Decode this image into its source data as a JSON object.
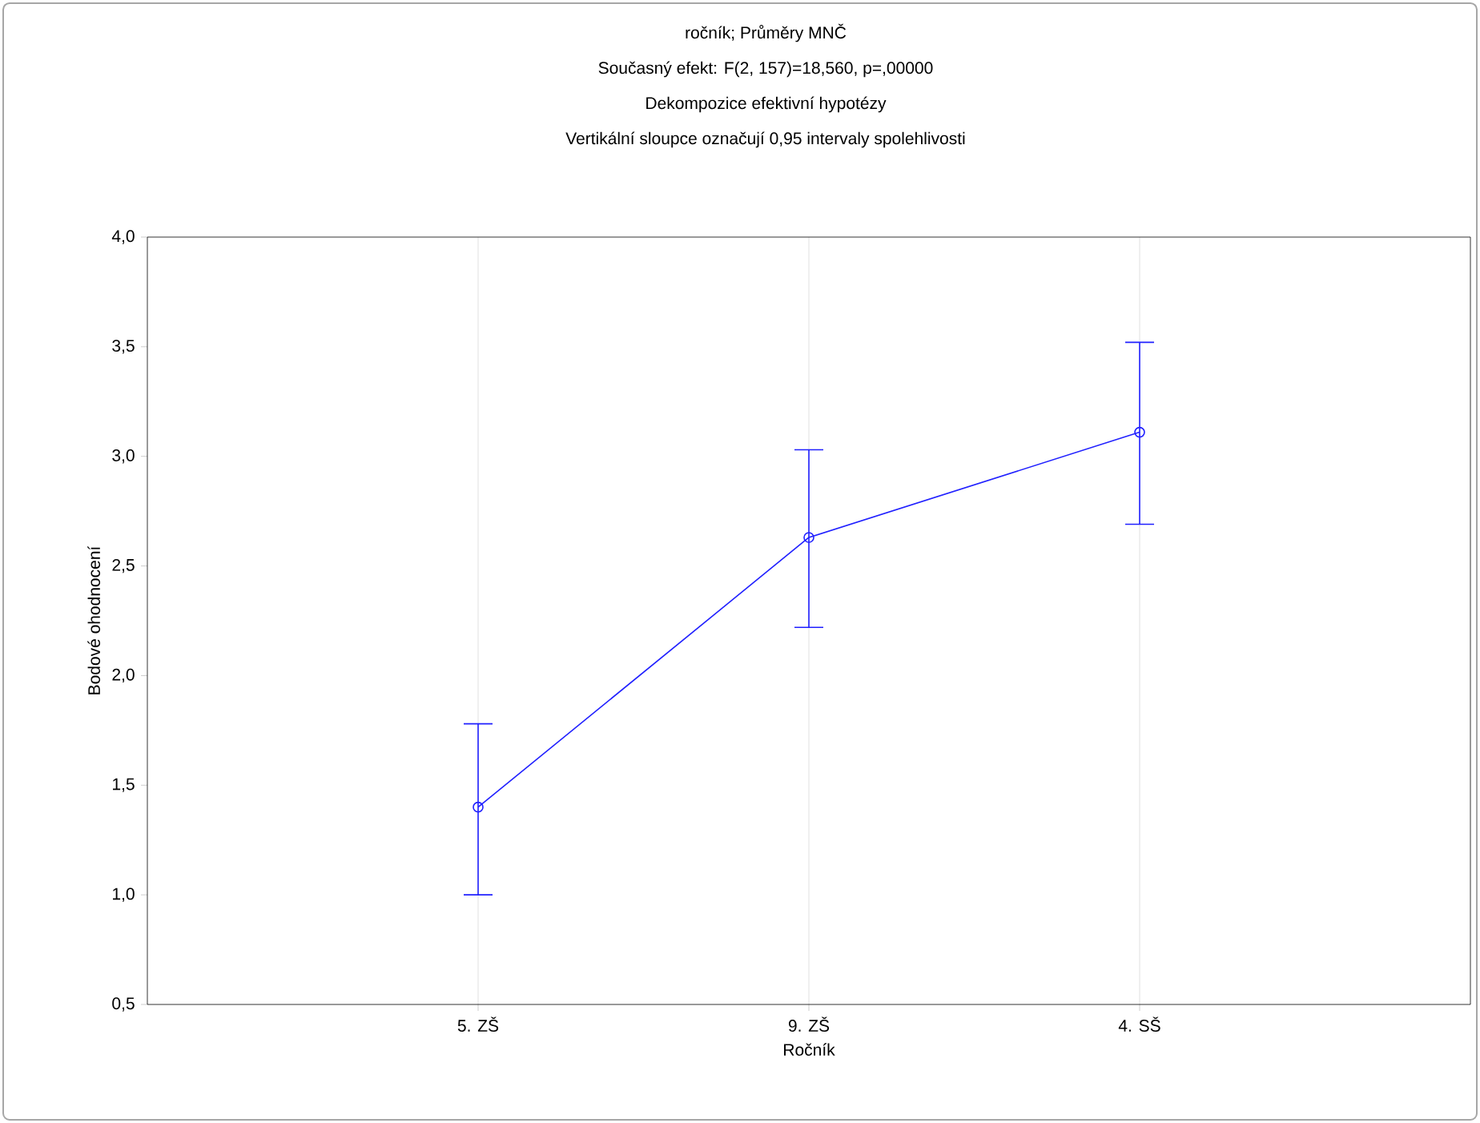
{
  "chart_data": {
    "type": "line",
    "title": "ročník; Průměry MNČ",
    "subtitle": "Současný efekt: F(2, 157)=18,560, p=,00000",
    "annotations": [
      "Dekompozice efektivní hypotézy",
      "Vertikální sloupce označují 0,95 intervaly spolehlivosti"
    ],
    "xlabel": "Ročník",
    "ylabel": "Bodové ohodnocení",
    "categories": [
      "5. ZŠ",
      "9. ZŠ",
      "4. SŠ"
    ],
    "values": [
      1.4,
      2.63,
      3.11
    ],
    "errors": [
      [
        1.0,
        1.78
      ],
      [
        2.22,
        3.03
      ],
      [
        2.69,
        3.52
      ]
    ],
    "color": "#2020ff",
    "marker": "circle",
    "grid": "x",
    "ylim": [
      0.5,
      4.0
    ],
    "yticks": [
      {
        "value": 0.5,
        "label": "0,5"
      },
      {
        "value": 1.0,
        "label": "1,0"
      },
      {
        "value": 1.5,
        "label": "1,5"
      },
      {
        "value": 2.0,
        "label": "2,0"
      },
      {
        "value": 2.5,
        "label": "2,5"
      },
      {
        "value": 3.0,
        "label": "3,0"
      },
      {
        "value": 3.5,
        "label": "3,5"
      },
      {
        "value": 4.0,
        "label": "4,0"
      }
    ]
  }
}
